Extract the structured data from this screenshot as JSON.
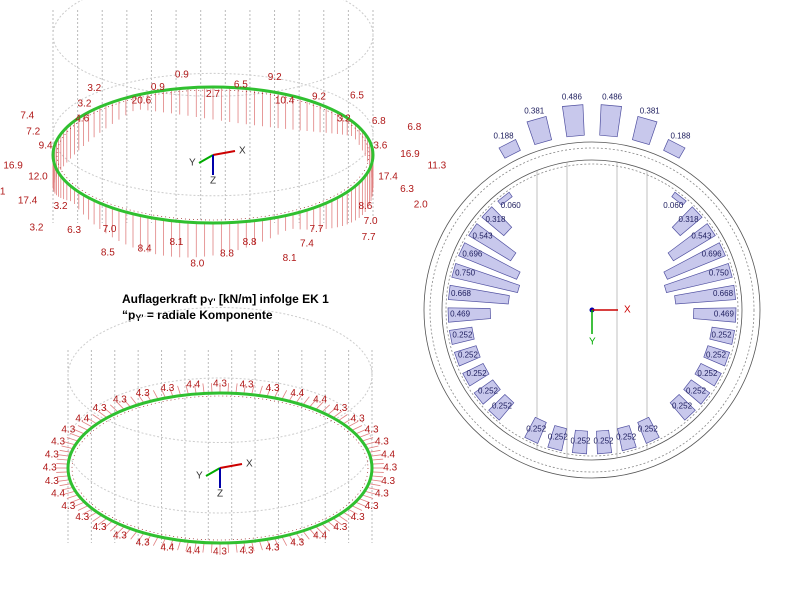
{
  "caption": {
    "line1": {
      "prefix": "Auflagerkraft p",
      "sub": "Y'",
      "suffix": " [kN/m] infolge EK 1"
    },
    "line2": {
      "prefix": "“p",
      "sub": "Y'",
      "suffix": " = radiale Komponente"
    }
  },
  "top_left": {
    "axes": [
      "X",
      "Y",
      "Z"
    ],
    "labels": [
      "2.7",
      "6.5",
      "9.2",
      "10.4",
      "9.2",
      "6.5",
      "3.2",
      "6.8",
      "6.8",
      "3.6",
      "16.9",
      "11.3",
      "17.4",
      "6.3",
      "2.0",
      "8.6",
      "7.0",
      "7.7",
      "7.7",
      "7.4",
      "8.1",
      "8.8",
      "8.8",
      "8.0",
      "8.1",
      "8.4",
      "8.5",
      "7.0",
      "6.3",
      "3.2",
      "3.2",
      "17.4",
      "14.1",
      "12.0",
      "16.9",
      "1.3",
      "9.4",
      "7.2",
      "7.4",
      "4.6",
      "3.2",
      "3.2",
      "20.6",
      "0.9",
      "0.9"
    ]
  },
  "bottom_left": {
    "axes": [
      "X",
      "Y",
      "Z"
    ],
    "labels": [
      "4.3",
      "4.3",
      "4.3",
      "4.4",
      "4.4",
      "4.3",
      "4.3",
      "4.3",
      "4.3",
      "4.4",
      "4.3",
      "4.3",
      "4.3",
      "4.3",
      "4.3",
      "4.3",
      "4.4",
      "4.3",
      "4.3",
      "4.3",
      "4.3",
      "4.4",
      "4.4",
      "4.3",
      "4.3",
      "4.3",
      "4.3",
      "4.3",
      "4.4",
      "4.3",
      "4.3",
      "4.3",
      "4.3",
      "4.3",
      "4.4",
      "4.3",
      "4.3",
      "4.3",
      "4.3",
      "4.4"
    ]
  },
  "right": {
    "axes": [
      "X",
      "Y"
    ],
    "top_labels": [
      "0.188",
      "0.381",
      "0.486",
      "0.486",
      "0.381",
      "0.188"
    ],
    "left_labels": [
      "0.060",
      "0.318",
      "0.543",
      "0.696",
      "0.750",
      "0.668",
      "0.469",
      "0.252",
      "0.252",
      "0.252",
      "0.252",
      "0.252"
    ],
    "right_labels": [
      "0.060",
      "0.318",
      "0.543",
      "0.696",
      "0.750",
      "0.668",
      "0.469",
      "0.252",
      "0.252",
      "0.252",
      "0.252",
      "0.252"
    ],
    "bottom_labels": [
      "0.252",
      "0.252",
      "0.252",
      "0.252",
      "0.252",
      "0.252"
    ]
  }
}
